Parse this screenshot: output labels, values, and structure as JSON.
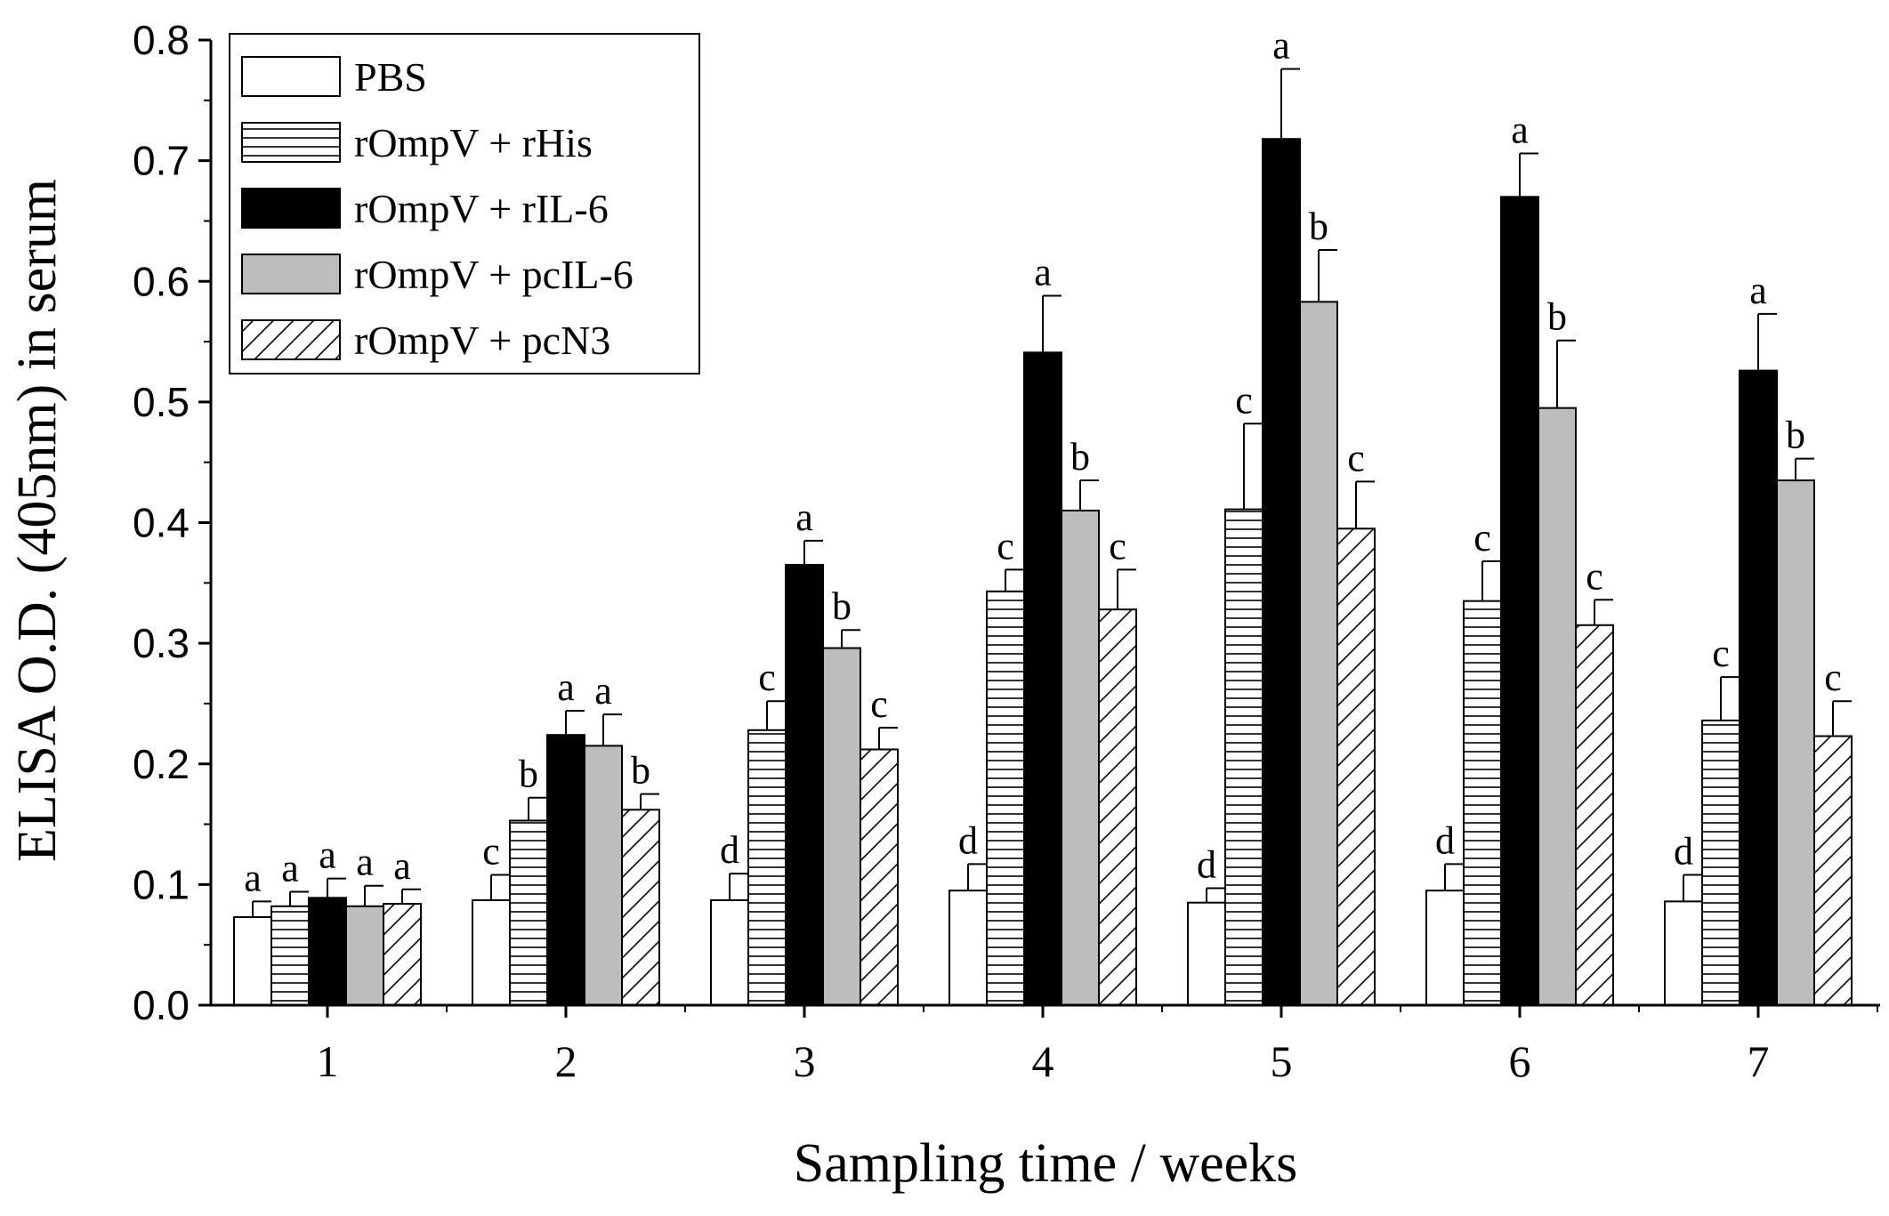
{
  "chart_data": {
    "type": "bar",
    "title": "",
    "xlabel": "Sampling time / weeks",
    "ylabel": "ELISA O.D. (405nm) in serum",
    "ylim": [
      0,
      0.8
    ],
    "yticks": [
      "0.0",
      "0.1",
      "0.2",
      "0.3",
      "0.4",
      "0.5",
      "0.6",
      "0.7",
      "0.8"
    ],
    "categories": [
      "1",
      "2",
      "3",
      "4",
      "5",
      "6",
      "7"
    ],
    "legend_position": "top-left",
    "series": [
      {
        "name": "PBS",
        "fill": "white",
        "values": [
          0.073,
          0.087,
          0.087,
          0.095,
          0.085,
          0.095,
          0.086
        ],
        "errors": [
          0.013,
          0.021,
          0.022,
          0.022,
          0.012,
          0.022,
          0.022
        ],
        "letters": [
          "a",
          "c",
          "d",
          "d",
          "d",
          "d",
          "d"
        ]
      },
      {
        "name": "rOmpV + rHis",
        "fill": "horizontal-lines",
        "values": [
          0.082,
          0.153,
          0.228,
          0.343,
          0.411,
          0.335,
          0.236
        ],
        "errors": [
          0.012,
          0.019,
          0.024,
          0.018,
          0.071,
          0.033,
          0.036
        ],
        "letters": [
          "a",
          "b",
          "c",
          "c",
          "c",
          "c",
          "c"
        ]
      },
      {
        "name": "rOmpV + rIL-6",
        "fill": "black",
        "values": [
          0.089,
          0.224,
          0.365,
          0.541,
          0.718,
          0.67,
          0.526
        ],
        "errors": [
          0.016,
          0.02,
          0.02,
          0.047,
          0.058,
          0.036,
          0.047
        ],
        "letters": [
          "a",
          "a",
          "a",
          "a",
          "a",
          "a",
          "a"
        ]
      },
      {
        "name": "rOmpV + pcIL-6",
        "fill": "gray",
        "values": [
          0.082,
          0.215,
          0.296,
          0.41,
          0.583,
          0.495,
          0.435
        ],
        "errors": [
          0.017,
          0.026,
          0.015,
          0.025,
          0.043,
          0.056,
          0.018
        ],
        "letters": [
          "a",
          "a",
          "b",
          "b",
          "b",
          "b",
          "b"
        ]
      },
      {
        "name": "rOmpV + pcN3",
        "fill": "diagonal-lines",
        "values": [
          0.084,
          0.162,
          0.212,
          0.328,
          0.395,
          0.315,
          0.223
        ],
        "errors": [
          0.012,
          0.013,
          0.018,
          0.033,
          0.039,
          0.021,
          0.029
        ],
        "letters": [
          "a",
          "b",
          "c",
          "c",
          "c",
          "c",
          "c"
        ]
      }
    ]
  }
}
